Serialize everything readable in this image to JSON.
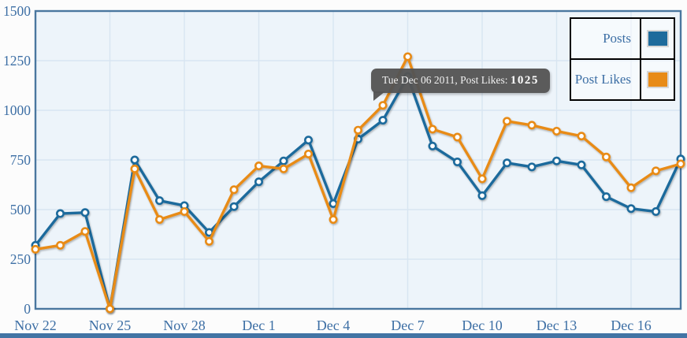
{
  "chart_data": {
    "type": "line",
    "title": "",
    "xlabel": "",
    "ylabel": "",
    "ylim": [
      0,
      1500
    ],
    "y_tick_labels": [
      "0",
      "250",
      "500",
      "750",
      "1000",
      "1250",
      "1500"
    ],
    "y_tick_values": [
      0,
      250,
      500,
      750,
      1000,
      1250,
      1500
    ],
    "x_tick_labels": [
      "Nov 22",
      "Nov 25",
      "Nov 28",
      "Dec 1",
      "Dec 4",
      "Dec 7",
      "Dec 10",
      "Dec 13",
      "Dec 16"
    ],
    "x_tick_indices": [
      0,
      3,
      6,
      9,
      12,
      15,
      18,
      21,
      24
    ],
    "x": [
      "Nov 22",
      "Nov 23",
      "Nov 24",
      "Nov 25",
      "Nov 26",
      "Nov 27",
      "Nov 28",
      "Nov 29",
      "Nov 30",
      "Dec 1",
      "Dec 2",
      "Dec 3",
      "Dec 4",
      "Dec 5",
      "Dec 6",
      "Dec 7",
      "Dec 8",
      "Dec 9",
      "Dec 10",
      "Dec 11",
      "Dec 12",
      "Dec 13",
      "Dec 14",
      "Dec 15",
      "Dec 16",
      "Dec 17",
      "Dec 18"
    ],
    "grid": true,
    "legend_position": "top-right",
    "series": [
      {
        "name": "Posts",
        "color": "#1e6b9c",
        "values": [
          320,
          480,
          485,
          0,
          750,
          545,
          520,
          385,
          515,
          640,
          745,
          850,
          530,
          855,
          950,
          1170,
          820,
          740,
          570,
          735,
          715,
          745,
          725,
          565,
          505,
          490,
          755
        ]
      },
      {
        "name": "Post Likes",
        "color": "#e88b17",
        "values": [
          300,
          320,
          390,
          0,
          705,
          450,
          490,
          340,
          600,
          720,
          705,
          780,
          450,
          900,
          1025,
          1270,
          905,
          865,
          655,
          945,
          925,
          895,
          870,
          765,
          610,
          695,
          730
        ]
      }
    ]
  },
  "tooltip": {
    "label": "Tue Dec 06 2011, Post Likes:",
    "value": "1025",
    "target_series": "Post Likes",
    "target_x": "Dec 6"
  },
  "colors": {
    "plot_background": "#edf4fa",
    "grid_line": "#d8e5f1",
    "plot_border": "#4a779f",
    "axis_text": "#3d6fa5",
    "tooltip_background": "#545454",
    "bottom_bar": "#4274a4"
  }
}
